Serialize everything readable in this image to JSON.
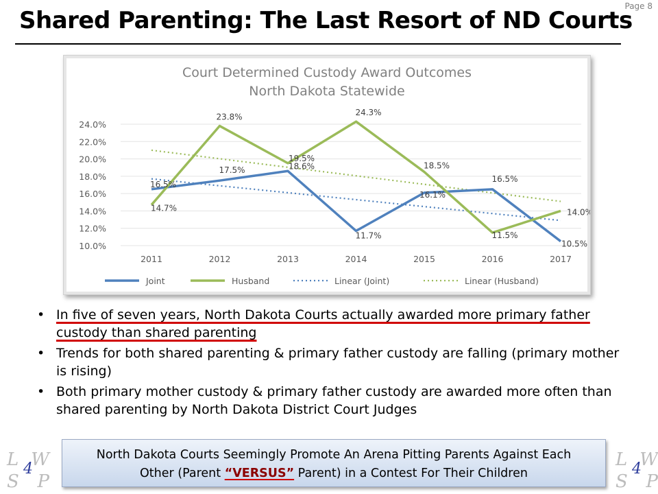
{
  "page_number": "Page 8",
  "title": "Shared Parenting: The Last Resort of ND Courts",
  "chart_data": {
    "type": "line",
    "title": "Court Determined  Custody Award Outcomes",
    "subtitle": "North Dakota Statewide",
    "x": [
      "2011",
      "2012",
      "2013",
      "2014",
      "2015",
      "2016",
      "2017"
    ],
    "ylim": [
      10.0,
      24.0
    ],
    "yticks": [
      "10.0%",
      "12.0%",
      "14.0%",
      "16.0%",
      "18.0%",
      "20.0%",
      "22.0%",
      "24.0%"
    ],
    "grid": true,
    "legend": "bottom",
    "series": [
      {
        "name": "Joint",
        "color": "#4f81bd",
        "values": [
          16.5,
          17.5,
          18.6,
          11.7,
          16.1,
          16.5,
          10.5
        ],
        "labels": [
          "16.5%",
          "17.5%",
          "18.6%",
          "11.7%",
          "16.1%",
          "16.5%",
          "10.5%"
        ]
      },
      {
        "name": "Husband",
        "color": "#9bbb59",
        "values": [
          14.7,
          23.8,
          19.5,
          24.3,
          18.5,
          11.5,
          14.0
        ],
        "labels": [
          "14.7%",
          "23.8%",
          "19.5%",
          "24.3%",
          "18.5%",
          "11.5%",
          "14.0%"
        ]
      }
    ],
    "trendlines": [
      {
        "name": "Linear (Joint)",
        "color": "#4f81bd",
        "from": 17.7,
        "to": 12.9
      },
      {
        "name": "Linear (Husband)",
        "color": "#9bbb59",
        "from": 21.0,
        "to": 15.1
      }
    ]
  },
  "bullets": [
    {
      "text": "In five of seven years, North Dakota Courts actually awarded more primary father custody than shared parenting"
    },
    {
      "text": "Trends for both shared parenting & primary father custody are falling (primary mother is rising)"
    },
    {
      "text": "Both primary mother custody & primary father custody are awarded more often than shared parenting by North Dakota District Court Judges"
    }
  ],
  "banner": {
    "line1": "North Dakota Courts Seemingly Promote An Arena Pitting Parents Against Each",
    "pre": "Other (Parent ",
    "versus": "“VERSUS”",
    "post": " Parent) in a Contest For Their Children"
  },
  "logo": {
    "l": "L",
    "w": "W",
    "s": "S",
    "p": "P",
    "num": "4"
  }
}
